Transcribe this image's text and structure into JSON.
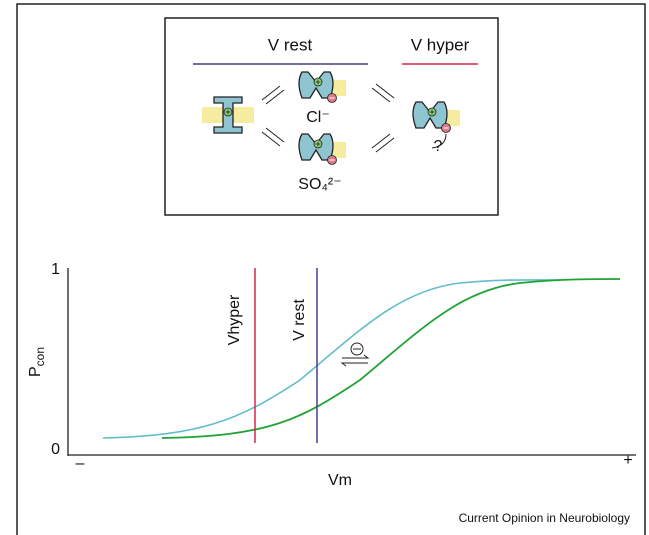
{
  "top_panel": {
    "v_rest": "V rest",
    "v_hyper": "V hyper",
    "chloride": "Cl⁻",
    "sulfate": "SO₄²⁻",
    "question": "?"
  },
  "plot": {
    "y_top": "1",
    "y_bottom": "0",
    "y_title": "P",
    "y_title_sub": "con",
    "x_left": "–",
    "x_right": "+",
    "x_title": "Vm",
    "vhyper_label": "Vhyper",
    "vrest_label": "V rest"
  },
  "source": "Current Opinion in Neurobiology"
}
